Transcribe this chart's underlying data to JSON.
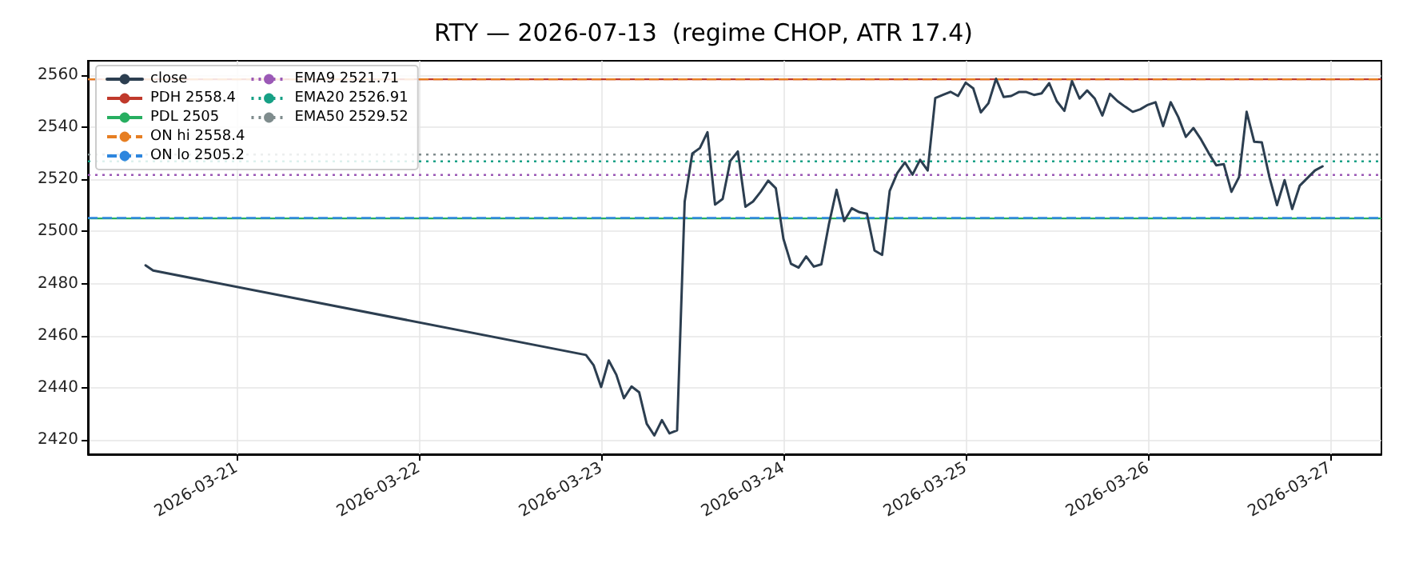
{
  "chart_data": {
    "type": "line",
    "title": "RTY — 2026-07-13  (regime CHOP, ATR 17.4)",
    "x": [
      "2026-03-20T12:00",
      "2026-03-20T13:00",
      "2026-03-22T22:00",
      "2026-03-22T23:00",
      "2026-03-23T00:00",
      "2026-03-23T01:00",
      "2026-03-23T02:00",
      "2026-03-23T03:00",
      "2026-03-23T04:00",
      "2026-03-23T05:00",
      "2026-03-23T06:00",
      "2026-03-23T07:00",
      "2026-03-23T08:00",
      "2026-03-23T09:00",
      "2026-03-23T10:00",
      "2026-03-23T11:00",
      "2026-03-23T12:00",
      "2026-03-23T13:00",
      "2026-03-23T14:00",
      "2026-03-23T15:00",
      "2026-03-23T16:00",
      "2026-03-23T17:00",
      "2026-03-23T18:00",
      "2026-03-23T19:00",
      "2026-03-23T20:00",
      "2026-03-23T21:00",
      "2026-03-23T22:00",
      "2026-03-23T23:00",
      "2026-03-24T00:00",
      "2026-03-24T01:00",
      "2026-03-24T02:00",
      "2026-03-24T03:00",
      "2026-03-24T04:00",
      "2026-03-24T05:00",
      "2026-03-24T06:00",
      "2026-03-24T07:00",
      "2026-03-24T08:00",
      "2026-03-24T09:00",
      "2026-03-24T10:00",
      "2026-03-24T11:00",
      "2026-03-24T12:00",
      "2026-03-24T13:00",
      "2026-03-24T14:00",
      "2026-03-24T15:00",
      "2026-03-24T16:00",
      "2026-03-24T17:00",
      "2026-03-24T18:00",
      "2026-03-24T19:00",
      "2026-03-24T20:00",
      "2026-03-24T21:00",
      "2026-03-24T22:00",
      "2026-03-24T23:00",
      "2026-03-25T00:00",
      "2026-03-25T01:00",
      "2026-03-25T02:00",
      "2026-03-25T03:00",
      "2026-03-25T04:00",
      "2026-03-25T05:00",
      "2026-03-25T06:00",
      "2026-03-25T07:00",
      "2026-03-25T08:00",
      "2026-03-25T09:00",
      "2026-03-25T10:00",
      "2026-03-25T11:00",
      "2026-03-25T12:00",
      "2026-03-25T13:00",
      "2026-03-25T14:00",
      "2026-03-25T15:00",
      "2026-03-25T16:00",
      "2026-03-25T17:00",
      "2026-03-25T18:00",
      "2026-03-25T19:00",
      "2026-03-25T20:00",
      "2026-03-25T21:00",
      "2026-03-25T22:00",
      "2026-03-25T23:00",
      "2026-03-26T00:00",
      "2026-03-26T01:00",
      "2026-03-26T02:00",
      "2026-03-26T03:00",
      "2026-03-26T04:00",
      "2026-03-26T05:00",
      "2026-03-26T06:00",
      "2026-03-26T07:00",
      "2026-03-26T08:00",
      "2026-03-26T09:00",
      "2026-03-26T10:00",
      "2026-03-26T11:00",
      "2026-03-26T12:00",
      "2026-03-26T13:00",
      "2026-03-26T14:00",
      "2026-03-26T15:00",
      "2026-03-26T16:00",
      "2026-03-26T17:00",
      "2026-03-26T18:00",
      "2026-03-26T19:00",
      "2026-03-26T20:00",
      "2026-03-26T21:00",
      "2026-03-26T22:00",
      "2026-03-26T23:00"
    ],
    "series": [
      {
        "name": "close",
        "color": "#2c3e50",
        "values": [
          2487,
          2485,
          2452.6,
          2448.7,
          2440.3,
          2450.5,
          2445,
          2436,
          2440.5,
          2438.3,
          2426.2,
          2421.7,
          2427.6,
          2422.5,
          2423.7,
          2511.5,
          2529.9,
          2532,
          2538.1,
          2510.3,
          2512.5,
          2527,
          2530.7,
          2509.5,
          2511.5,
          2515.2,
          2519.5,
          2516.6,
          2497.2,
          2487.6,
          2486.1,
          2490.4,
          2486.5,
          2487.4,
          2502.9,
          2516,
          2504,
          2508.9,
          2507.4,
          2506.8,
          2492.7,
          2491,
          2515.6,
          2522.4,
          2526.5,
          2521.8,
          2527.5,
          2523.4,
          2551.2,
          2552.4,
          2553.6,
          2552,
          2557.1,
          2554.9,
          2545.7,
          2549.2,
          2558.6,
          2551.6,
          2552,
          2553.5,
          2553.5,
          2552.4,
          2553,
          2556.9,
          2550,
          2546.3,
          2557.7,
          2551,
          2554.1,
          2551,
          2544.5,
          2552.8,
          2550,
          2547.9,
          2545.9,
          2546.9,
          2548.6,
          2549.6,
          2540.4,
          2549.6,
          2543.9,
          2536.3,
          2539.7,
          2535.3,
          2530.1,
          2525.4,
          2525.8,
          2515.2,
          2520.9,
          2545.9,
          2534.4,
          2534.2,
          2520.9,
          2510.1,
          2519.7,
          2508.6,
          2517.6,
          2520.5,
          2523.4,
          2525
        ]
      }
    ],
    "ref_lines": [
      {
        "axis": "y",
        "value": 2558.4,
        "label": "PDH 2558.4",
        "color": "#c0392b",
        "line_style": "solid"
      },
      {
        "axis": "y",
        "value": 2505,
        "label": "PDL 2505",
        "color": "#27ae60",
        "line_style": "solid"
      },
      {
        "axis": "y",
        "value": 2558.4,
        "label": "ON hi 2558.4",
        "color": "#e67e22",
        "line_style": "dashed"
      },
      {
        "axis": "y",
        "value": 2505.2,
        "label": "ON lo 2505.2",
        "color": "#2e86de",
        "line_style": "dashed"
      },
      {
        "axis": "y",
        "value": 2521.71,
        "label": "EMA9 2521.71",
        "color": "#9b59b6",
        "line_style": "dotted"
      },
      {
        "axis": "y",
        "value": 2526.91,
        "label": "EMA20 2526.91",
        "color": "#16a085",
        "line_style": "dotted"
      },
      {
        "axis": "y",
        "value": 2529.52,
        "label": "EMA50 2529.52",
        "color": "#7f8c8d",
        "line_style": "dotted"
      }
    ],
    "xlim": [
      "2026-03-20T04:25",
      "2026-03-27T06:45"
    ],
    "xticks": [
      "2026-03-21",
      "2026-03-22",
      "2026-03-23",
      "2026-03-24",
      "2026-03-25",
      "2026-03-26",
      "2026-03-27"
    ],
    "ylim": [
      2414.5,
      2565.5
    ],
    "yticks": [
      2420,
      2440,
      2460,
      2480,
      2500,
      2520,
      2540,
      2560
    ],
    "grid": true,
    "legend": "top left"
  }
}
